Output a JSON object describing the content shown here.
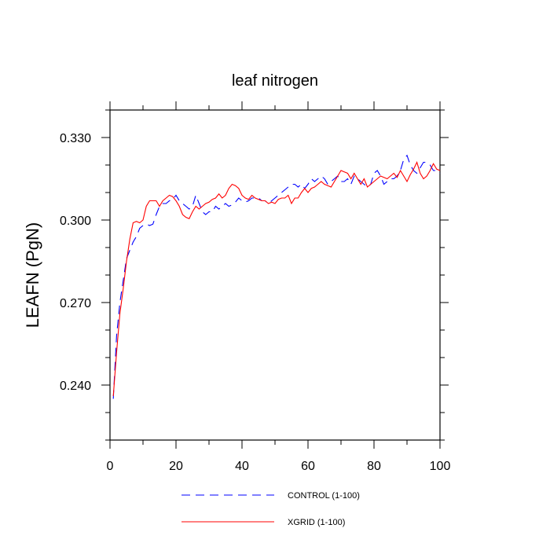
{
  "chart_data": {
    "type": "line",
    "title": "leaf nitrogen",
    "xlabel": "",
    "ylabel": "LEAFN  (PgN)",
    "xlim": [
      0,
      100
    ],
    "ylim": [
      0.22,
      0.34
    ],
    "x_ticks": [
      "0",
      "20",
      "40",
      "60",
      "80",
      "100"
    ],
    "y_ticks": [
      "0.240",
      "0.270",
      "0.300",
      "0.330"
    ],
    "legend_placement": "bottom",
    "series": [
      {
        "name": "CONTROL (1-100)",
        "color": "#0000ff",
        "dash": "dashed",
        "x": [
          1,
          2,
          3,
          4,
          5,
          6,
          7,
          8,
          9,
          10,
          11,
          12,
          13,
          14,
          15,
          16,
          17,
          18,
          19,
          20,
          21,
          22,
          23,
          24,
          25,
          26,
          27,
          28,
          29,
          30,
          31,
          32,
          33,
          34,
          35,
          36,
          37,
          38,
          39,
          40,
          41,
          42,
          43,
          44,
          45,
          46,
          47,
          48,
          49,
          50,
          51,
          52,
          53,
          54,
          55,
          56,
          57,
          58,
          59,
          60,
          61,
          62,
          63,
          64,
          65,
          66,
          67,
          68,
          69,
          70,
          71,
          72,
          73,
          74,
          75,
          76,
          77,
          78,
          79,
          80,
          81,
          82,
          83,
          84,
          85,
          86,
          87,
          88,
          89,
          90,
          91,
          92,
          93,
          94,
          95,
          96,
          97,
          98,
          99,
          100
        ],
        "values": [
          0.235,
          0.258,
          0.27,
          0.278,
          0.286,
          0.289,
          0.292,
          0.294,
          0.297,
          0.298,
          0.2985,
          0.298,
          0.2985,
          0.302,
          0.305,
          0.306,
          0.306,
          0.307,
          0.3075,
          0.309,
          0.307,
          0.306,
          0.305,
          0.304,
          0.305,
          0.309,
          0.306,
          0.303,
          0.302,
          0.303,
          0.303,
          0.305,
          0.304,
          0.305,
          0.306,
          0.305,
          0.3055,
          0.3065,
          0.308,
          0.307,
          0.3065,
          0.307,
          0.308,
          0.308,
          0.308,
          0.307,
          0.307,
          0.306,
          0.307,
          0.308,
          0.309,
          0.31,
          0.311,
          0.312,
          0.313,
          0.313,
          0.312,
          0.313,
          0.3115,
          0.313,
          0.315,
          0.314,
          0.315,
          0.316,
          0.315,
          0.313,
          0.314,
          0.315,
          0.316,
          0.314,
          0.314,
          0.315,
          0.313,
          0.316,
          0.315,
          0.314,
          0.313,
          0.312,
          0.313,
          0.317,
          0.318,
          0.316,
          0.313,
          0.314,
          0.315,
          0.315,
          0.316,
          0.318,
          0.322,
          0.3235,
          0.32,
          0.318,
          0.317,
          0.319,
          0.321,
          0.321,
          0.32,
          0.318,
          0.318,
          0.317
        ]
      },
      {
        "name": "XGRID (1-100)",
        "color": "#ff0000",
        "dash": "solid",
        "x": [
          1,
          2,
          3,
          4,
          5,
          6,
          7,
          8,
          9,
          10,
          11,
          12,
          13,
          14,
          15,
          16,
          17,
          18,
          19,
          20,
          21,
          22,
          23,
          24,
          25,
          26,
          27,
          28,
          29,
          30,
          31,
          32,
          33,
          34,
          35,
          36,
          37,
          38,
          39,
          40,
          41,
          42,
          43,
          44,
          45,
          46,
          47,
          48,
          49,
          50,
          51,
          52,
          53,
          54,
          55,
          56,
          57,
          58,
          59,
          60,
          61,
          62,
          63,
          64,
          65,
          66,
          67,
          68,
          69,
          70,
          71,
          72,
          73,
          74,
          75,
          76,
          77,
          78,
          79,
          80,
          81,
          82,
          83,
          84,
          85,
          86,
          87,
          88,
          89,
          90,
          91,
          92,
          93,
          94,
          95,
          96,
          97,
          98,
          99,
          100
        ],
        "values": [
          0.236,
          0.252,
          0.266,
          0.275,
          0.285,
          0.293,
          0.299,
          0.2995,
          0.299,
          0.3,
          0.305,
          0.307,
          0.307,
          0.307,
          0.305,
          0.307,
          0.308,
          0.309,
          0.3085,
          0.307,
          0.305,
          0.302,
          0.301,
          0.3005,
          0.303,
          0.305,
          0.304,
          0.305,
          0.306,
          0.3065,
          0.3075,
          0.308,
          0.3095,
          0.308,
          0.309,
          0.3115,
          0.313,
          0.3125,
          0.3115,
          0.309,
          0.308,
          0.3075,
          0.309,
          0.308,
          0.3075,
          0.307,
          0.307,
          0.306,
          0.3065,
          0.306,
          0.3075,
          0.308,
          0.308,
          0.309,
          0.306,
          0.308,
          0.308,
          0.31,
          0.3115,
          0.31,
          0.3115,
          0.312,
          0.313,
          0.314,
          0.313,
          0.3125,
          0.312,
          0.314,
          0.316,
          0.318,
          0.3175,
          0.317,
          0.315,
          0.317,
          0.315,
          0.313,
          0.315,
          0.312,
          0.313,
          0.314,
          0.315,
          0.316,
          0.3155,
          0.315,
          0.316,
          0.317,
          0.3155,
          0.318,
          0.316,
          0.314,
          0.3165,
          0.3185,
          0.321,
          0.317,
          0.315,
          0.316,
          0.318,
          0.3205,
          0.3185,
          0.318
        ]
      }
    ]
  }
}
